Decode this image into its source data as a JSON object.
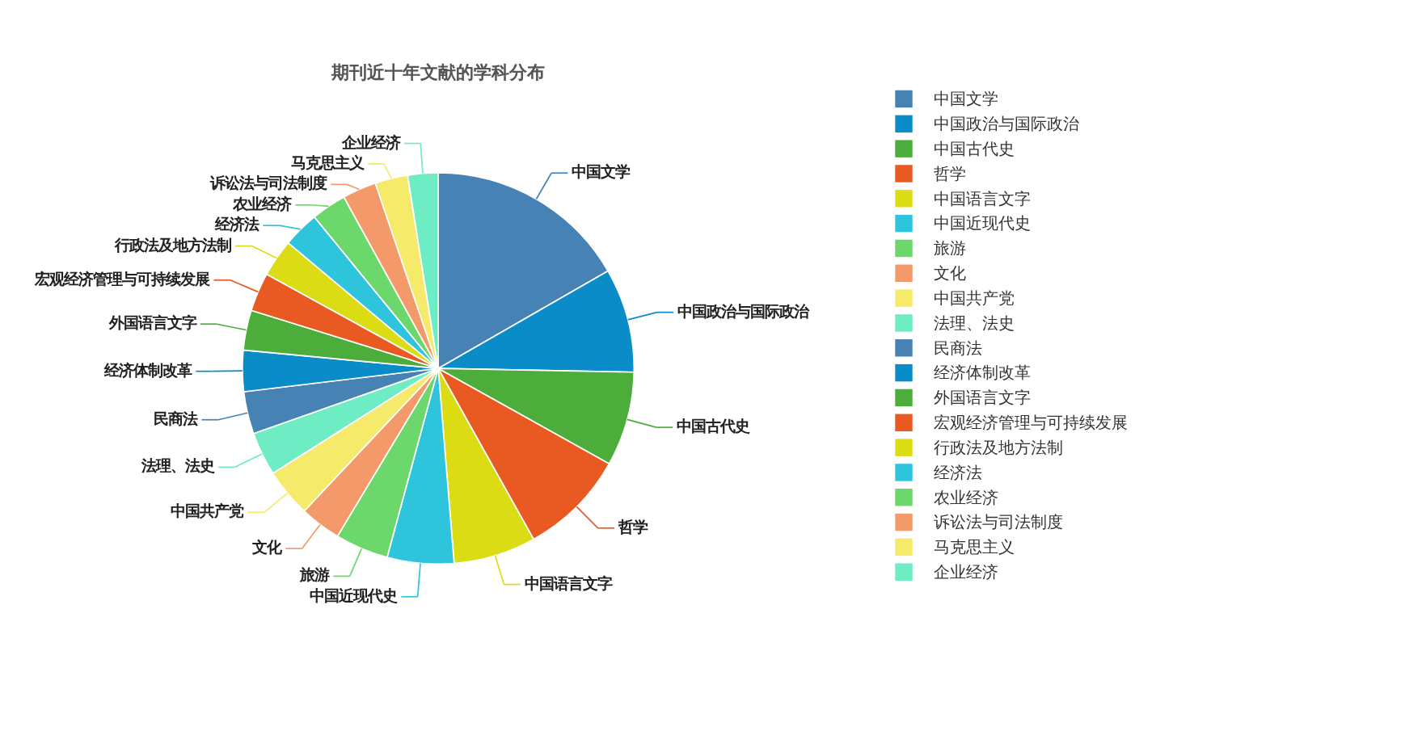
{
  "chart_data": {
    "type": "pie",
    "title": "期刊近十年文献的学科分布",
    "categories": [
      "中国文学",
      "中国政治与国际政治",
      "中国古代史",
      "哲学",
      "中国语言文字",
      "中国近现代史",
      "旅游",
      "文化",
      "中国共产党",
      "法理、法史",
      "民商法",
      "经济体制改革",
      "外国语言文字",
      "宏观经济管理与可持续发展",
      "行政法及地方法制",
      "经济法",
      "农业经济",
      "诉讼法与司法制度",
      "马克思主义",
      "企业经济"
    ],
    "values": [
      16.7,
      8.6,
      7.8,
      8.8,
      6.8,
      5.5,
      4.4,
      3.4,
      4.0,
      3.6,
      3.5,
      3.4,
      3.3,
      3.2,
      3.1,
      3.0,
      2.9,
      2.8,
      2.7,
      2.5
    ],
    "colors": [
      "#4682b4",
      "#0a8cc8",
      "#4cad3a",
      "#e85a22",
      "#dcdc14",
      "#2ec4dc",
      "#6cd86c",
      "#f49a6a",
      "#f6ea6a",
      "#6eecc4",
      "#4682b4",
      "#0a8cc8",
      "#4cad3a",
      "#e85a22",
      "#dcdc14",
      "#2ec4dc",
      "#6cd86c",
      "#f49a6a",
      "#f6ea6a",
      "#6eecc4"
    ],
    "legend": "right"
  }
}
